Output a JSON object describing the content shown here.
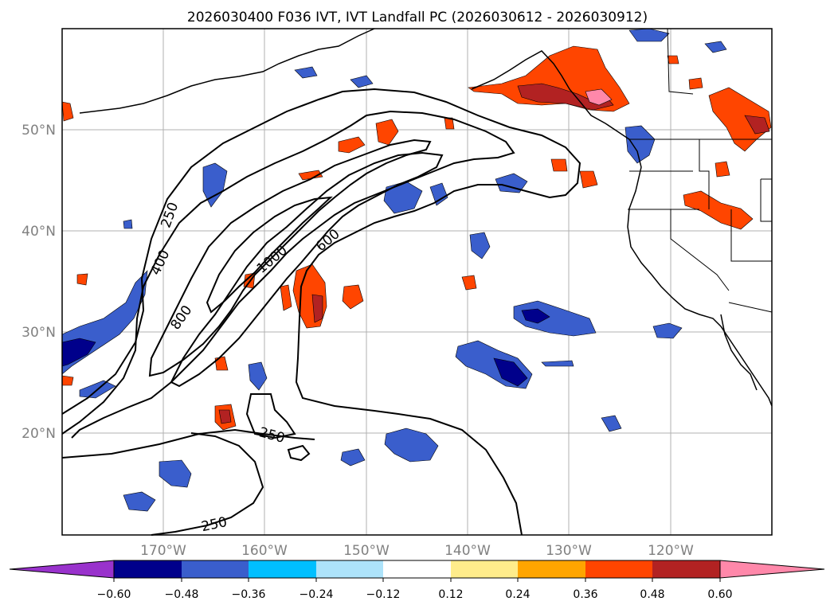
{
  "title": "2026030400 F036 IVT, IVT Landfall PC (2026030612 - 2026030912)",
  "lat_labels": [
    "50°N",
    "40°N",
    "30°N",
    "20°N"
  ],
  "lon_labels": [
    "170°W",
    "160°W",
    "150°W",
    "140°W",
    "130°W",
    "120°W"
  ],
  "contour_labels": {
    "c250_north": "250",
    "c400": "400",
    "c800": "800",
    "c1000": "1000",
    "c600": "600",
    "c250_south": "250",
    "c250_bottom": "250"
  },
  "colorbar": {
    "ticks": [
      "−0.60",
      "−0.48",
      "−0.36",
      "−0.24",
      "−0.12",
      "0.12",
      "0.24",
      "0.36",
      "0.48",
      "0.60"
    ],
    "colors": [
      "#9932CC",
      "#00008B",
      "#3A5ECC",
      "#00BFFF",
      "#ADE3FA",
      "#FFFFFF",
      "#FFEC8B",
      "#FFA500",
      "#FF4500",
      "#B22222",
      "#FF88AA"
    ]
  }
}
